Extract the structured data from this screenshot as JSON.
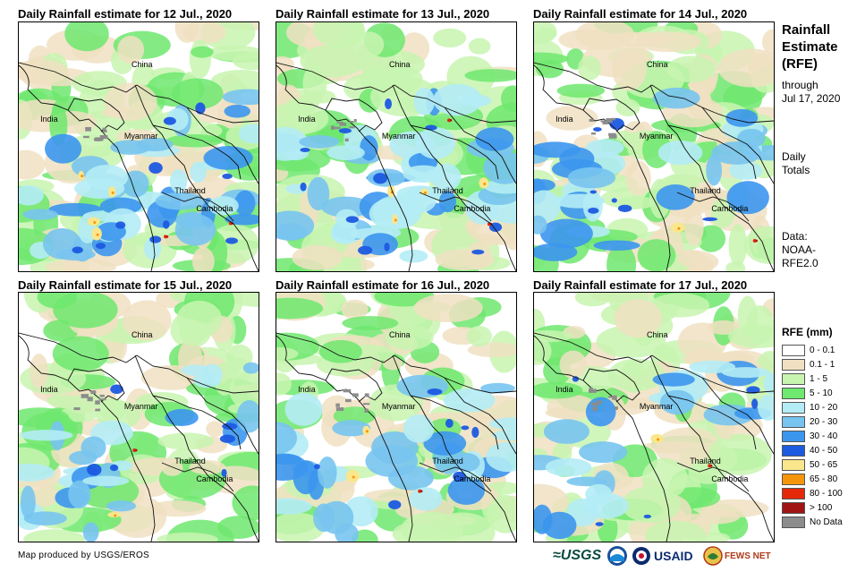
{
  "panels": [
    {
      "title": "Daily Rainfall estimate for 12 Jul., 2020",
      "china": "China",
      "india": "India",
      "myanmar": "Myanmar",
      "thailand": "Thailand",
      "cambodia": "Cambodia"
    },
    {
      "title": "Daily Rainfall estimate for 13 Jul., 2020",
      "china": "China",
      "india": "India",
      "myanmar": "Myanmar",
      "thailand": "Thailand",
      "cambodia": "Cambodia"
    },
    {
      "title": "Daily Rainfall estimate for 14 Jul., 2020",
      "china": "China",
      "india": "India",
      "myanmar": "Myanmar",
      "thailand": "Thailand",
      "cambodia": "Cambodia"
    },
    {
      "title": "Daily Rainfall estimate for 15 Jul., 2020",
      "china": "China",
      "india": "India",
      "myanmar": "Myanmar",
      "thailand": "Thailand",
      "cambodia": "Cambodia"
    },
    {
      "title": "Daily Rainfall estimate for 16 Jul., 2020",
      "china": "China",
      "india": "India",
      "myanmar": "Myanmar",
      "thailand": "Thailand",
      "cambodia": "Cambodia"
    },
    {
      "title": "Daily Rainfall estimate for 17 Jul., 2020",
      "china": "China",
      "india": "India",
      "myanmar": "Myanmar",
      "thailand": "Thailand",
      "cambodia": "Cambodia"
    }
  ],
  "side": {
    "title_line1": "Rainfall",
    "title_line2": "Estimate",
    "title_line3": "(RFE)",
    "through": "through",
    "through_date": "Jul 17, 2020",
    "daily": "Daily",
    "totals": "Totals",
    "data_label": "Data:",
    "data_source1": "NOAA-",
    "data_source2": "RFE2.0"
  },
  "legend": {
    "title": "RFE (mm)",
    "items": [
      {
        "label": "0 - 0.1",
        "color": "#ffffff"
      },
      {
        "label": "0.1 - 1",
        "color": "#f0e0c2"
      },
      {
        "label": "1 - 5",
        "color": "#c8f5b0"
      },
      {
        "label": "5 - 10",
        "color": "#6ee86e"
      },
      {
        "label": "10 - 20",
        "color": "#b4ecf5"
      },
      {
        "label": "20 - 30",
        "color": "#78c4f0"
      },
      {
        "label": "30 - 40",
        "color": "#3c96ee"
      },
      {
        "label": "40 - 50",
        "color": "#1c5ae0"
      },
      {
        "label": "50 - 65",
        "color": "#fae68c"
      },
      {
        "label": "65 - 80",
        "color": "#f5960a"
      },
      {
        "label": "80 - 100",
        "color": "#e6280a"
      },
      {
        "label": "> 100",
        "color": "#a01414"
      },
      {
        "label": "No Data",
        "color": "#8c8c8c"
      }
    ]
  },
  "footer": {
    "credit": "Map produced by USGS/EROS",
    "usgs": "≈USGS",
    "usaid": "USAID",
    "fews": "FEWS NET"
  }
}
